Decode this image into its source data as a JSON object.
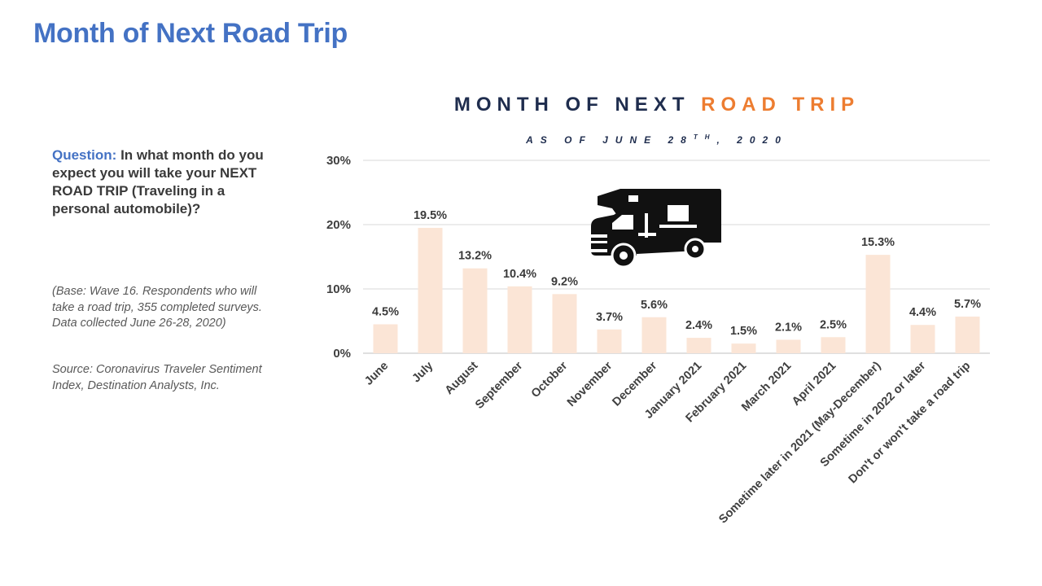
{
  "slide": {
    "title": "Month of Next Road Trip",
    "question_label": "Question:",
    "question_text": "In what month do you expect you will take your NEXT ROAD TRIP (Traveling in a personal automobile)?",
    "base_note": "(Base: Wave 16. Respondents who will take a road trip, 355 completed surveys. Data collected June 26-28, 2020)",
    "source_note": "Source: Coronavirus Traveler Sentiment Index, Destination Analysts, Inc."
  },
  "chart_data": {
    "type": "bar",
    "title_part1": "MONTH OF NEXT",
    "title_part2": "ROAD TRIP",
    "subtitle_main": "AS OF JUNE 28",
    "subtitle_sup": "TH",
    "subtitle_end": ", 2020",
    "categories": [
      "June",
      "July",
      "August",
      "September",
      "October",
      "November",
      "December",
      "January 2021",
      "February 2021",
      "March 2021",
      "April 2021",
      "Sometime later in 2021 (May-December)",
      "Sometime in 2022 or later",
      "Don't or won't take a road trip"
    ],
    "values": [
      4.5,
      19.5,
      13.2,
      10.4,
      9.2,
      3.7,
      5.6,
      2.4,
      1.5,
      2.1,
      2.5,
      15.3,
      4.4,
      5.7
    ],
    "data_labels": [
      "4.5%",
      "19.5%",
      "13.2%",
      "10.4%",
      "9.2%",
      "3.7%",
      "5.6%",
      "2.4%",
      "1.5%",
      "2.1%",
      "2.5%",
      "15.3%",
      "4.4%",
      "5.7%"
    ],
    "yticks": [
      0,
      10,
      20,
      30
    ],
    "ytick_labels": [
      "0%",
      "10%",
      "20%",
      "30%"
    ],
    "ylim": [
      0,
      30
    ],
    "grid": true,
    "bar_color": "#FBE5D6",
    "title_color": "#1F2D4E",
    "accent_color": "#ED7D31",
    "icon": "rv-camper-icon"
  }
}
